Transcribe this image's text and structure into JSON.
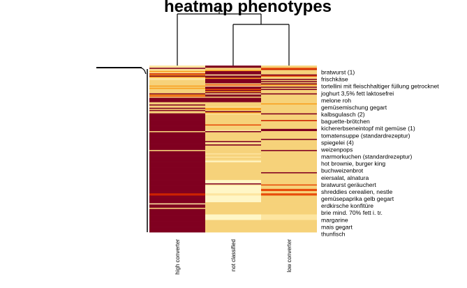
{
  "chart_data": {
    "type": "heatmap",
    "title": "heatmap phenotypes",
    "columns": [
      "high converter",
      "not classified",
      "low converter"
    ],
    "row_labels": [
      "bratwurst (1)",
      "frischkäse",
      "tortellini mit fleischhaltiger füllung getrocknet",
      "joghurt 3,5% fett laktosefrei",
      "melone roh",
      "gemüsemischung gegart",
      "kalbsgulasch (2)",
      "baguette-brötchen",
      "kichererbseneintopf mit gemüse (1)",
      "tomatensuppe (standardrezeptur)",
      "spiegelei (4)",
      "weizenpops",
      "marmorkuchen (standardrezeptur)",
      "hot brownie, burger king",
      "buchweizenbrot",
      "eiersalat, alnatura",
      "bratwurst geräuchert",
      "shreddies cerealien, nestle",
      "gemüsepaprika gelb gegart",
      "erdkirsche konfitüre",
      "brie mind. 70% fett i. tr.",
      "margarine",
      "mais gegart",
      "thunfisch"
    ],
    "value_range": [
      0,
      5
    ],
    "color_scale": [
      "#800020",
      "#cc2200",
      "#e84c0a",
      "#f8a020",
      "#f6d27a",
      "#fde5a0",
      "#fff6c6"
    ],
    "matrix_rows_top_to_bottom": [
      [
        5,
        0,
        4
      ],
      [
        5,
        0,
        4
      ],
      [
        0,
        4,
        2
      ],
      [
        5,
        4,
        1
      ],
      [
        4,
        3,
        4
      ],
      [
        3,
        0,
        4
      ],
      [
        5,
        0,
        4
      ],
      [
        1,
        0,
        4
      ],
      [
        3,
        5,
        0
      ],
      [
        0,
        0,
        2
      ],
      [
        3,
        0,
        4
      ],
      [
        5,
        3,
        4
      ],
      [
        5,
        0,
        0
      ],
      [
        4,
        0,
        4
      ],
      [
        4,
        0,
        0
      ],
      [
        4,
        0,
        4
      ],
      [
        4,
        4,
        0
      ],
      [
        4,
        2,
        3
      ],
      [
        3,
        5,
        4
      ],
      [
        4,
        0,
        0
      ],
      [
        3,
        0,
        4
      ],
      [
        4,
        2,
        0
      ],
      [
        4,
        0,
        4
      ],
      [
        4,
        3,
        4
      ],
      [
        4,
        0,
        4
      ],
      [
        0,
        5,
        0
      ],
      [
        3,
        0,
        4
      ],
      [
        2,
        0,
        4
      ],
      [
        4,
        4,
        4
      ],
      [
        0,
        0,
        4
      ],
      [
        0,
        0,
        4
      ],
      [
        0,
        0,
        4
      ],
      [
        0,
        0,
        4
      ],
      [
        4,
        4,
        4
      ],
      [
        4,
        4,
        3
      ],
      [
        0,
        4,
        4
      ],
      [
        4,
        4,
        4
      ],
      [
        4,
        5,
        4
      ],
      [
        0,
        3,
        4
      ],
      [
        4,
        3,
        4
      ],
      [
        0,
        4,
        4
      ],
      [
        4,
        0,
        4
      ],
      [
        4,
        3,
        4
      ],
      [
        0,
        5,
        0
      ],
      [
        0,
        4,
        4
      ],
      [
        0,
        4,
        4
      ],
      [
        0,
        4,
        4
      ],
      [
        0,
        4,
        4
      ],
      [
        0,
        4,
        4
      ],
      [
        0,
        4,
        1
      ],
      [
        0,
        4,
        4
      ],
      [
        0,
        4,
        4
      ],
      [
        0,
        4,
        4
      ],
      [
        0,
        2,
        4
      ],
      [
        0,
        4,
        4
      ],
      [
        0,
        4,
        4
      ],
      [
        0,
        4,
        4
      ],
      [
        0,
        4,
        0
      ],
      [
        0,
        5,
        0
      ],
      [
        4,
        0,
        4
      ],
      [
        0,
        4,
        4
      ],
      [
        0,
        4,
        4
      ],
      [
        0,
        4,
        4
      ],
      [
        0,
        4,
        4
      ],
      [
        0,
        4,
        4
      ],
      [
        0,
        4,
        4
      ],
      [
        0,
        4,
        0
      ],
      [
        0,
        4,
        4
      ],
      [
        0,
        0,
        4
      ],
      [
        0,
        5,
        4
      ],
      [
        0,
        4,
        4
      ],
      [
        0,
        0,
        4
      ],
      [
        0,
        4,
        4
      ],
      [
        0,
        4,
        4
      ],
      [
        0,
        4,
        4
      ],
      [
        0,
        4,
        4
      ],
      [
        4,
        4,
        0
      ],
      [
        0,
        4,
        4
      ],
      [
        0,
        4,
        4
      ],
      [
        0,
        5,
        4
      ],
      [
        0,
        4,
        4
      ],
      [
        0,
        4,
        4
      ],
      [
        0,
        5,
        4
      ],
      [
        0,
        4,
        4
      ],
      [
        0,
        4,
        4
      ],
      [
        0,
        5,
        4
      ],
      [
        0,
        6,
        4
      ],
      [
        0,
        4,
        4
      ],
      [
        0,
        4,
        4
      ],
      [
        0,
        4,
        4
      ],
      [
        0,
        4,
        4
      ],
      [
        0,
        4,
        4
      ],
      [
        0,
        4,
        4
      ],
      [
        0,
        4,
        4
      ],
      [
        0,
        4,
        4
      ],
      [
        0,
        4,
        4
      ],
      [
        0,
        4,
        0
      ],
      [
        0,
        4,
        4
      ],
      [
        0,
        4,
        4
      ],
      [
        0,
        4,
        4
      ],
      [
        0,
        4,
        4
      ],
      [
        0,
        4,
        4
      ],
      [
        0,
        4,
        4
      ],
      [
        0,
        6,
        4
      ],
      [
        0,
        6,
        4
      ],
      [
        0,
        6,
        4
      ],
      [
        0,
        0,
        4
      ],
      [
        0,
        5,
        2
      ],
      [
        0,
        6,
        4
      ],
      [
        0,
        6,
        4
      ],
      [
        0,
        6,
        4
      ],
      [
        0,
        6,
        2
      ],
      [
        0,
        6,
        2
      ],
      [
        0,
        6,
        4
      ],
      [
        0,
        6,
        4
      ],
      [
        1,
        5,
        2
      ],
      [
        1,
        5,
        2
      ],
      [
        0,
        6,
        4
      ],
      [
        0,
        6,
        4
      ],
      [
        0,
        6,
        4
      ],
      [
        0,
        6,
        4
      ],
      [
        0,
        6,
        4
      ],
      [
        0,
        6,
        4
      ],
      [
        0,
        4,
        4
      ],
      [
        5,
        4,
        4
      ],
      [
        0,
        4,
        4
      ],
      [
        0,
        4,
        4
      ],
      [
        0,
        4,
        4
      ],
      [
        4,
        4,
        4
      ],
      [
        0,
        4,
        4
      ],
      [
        0,
        4,
        4
      ],
      [
        0,
        4,
        4
      ],
      [
        0,
        4,
        4
      ],
      [
        0,
        4,
        4
      ],
      [
        0,
        6,
        5
      ],
      [
        0,
        6,
        5
      ],
      [
        0,
        6,
        5
      ],
      [
        0,
        6,
        5
      ],
      [
        0,
        6,
        5
      ],
      [
        0,
        4,
        4
      ],
      [
        0,
        4,
        4
      ],
      [
        0,
        4,
        4
      ],
      [
        0,
        4,
        4
      ],
      [
        0,
        4,
        4
      ],
      [
        0,
        4,
        4
      ],
      [
        0,
        4,
        4
      ],
      [
        0,
        4,
        4
      ],
      [
        0,
        4,
        4
      ],
      [
        0,
        4,
        4
      ],
      [
        0,
        4,
        4
      ]
    ],
    "column_dendrogram": "((not classified, low converter), high converter)",
    "legend": "none",
    "grid": false
  }
}
